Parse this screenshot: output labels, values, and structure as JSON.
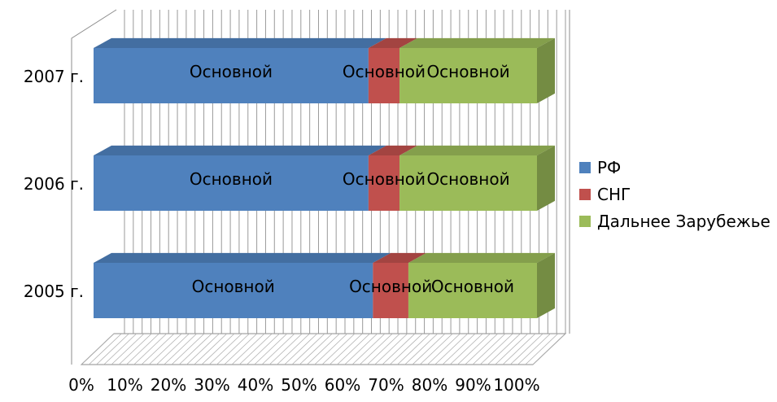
{
  "chart_data": {
    "type": "bar",
    "orientation": "horizontal",
    "stacked": "percent",
    "three_d": true,
    "categories": [
      "2005 г.",
      "2006 г.",
      "2007 г."
    ],
    "series": [
      {
        "name": "РФ",
        "color": "#4F81BD",
        "values": [
          63,
          62,
          62
        ],
        "labels": [
          "Основной",
          "Основной",
          "Основной"
        ]
      },
      {
        "name": "СНГ",
        "color": "#C0504D",
        "values": [
          8,
          7,
          7
        ],
        "labels": [
          "Основной",
          "Основной",
          "Основной"
        ]
      },
      {
        "name": "Дальнее Зарубежье",
        "color": "#9BBB59",
        "values": [
          29,
          31,
          31
        ],
        "labels": [
          "Основной",
          "Основной",
          "Основной"
        ]
      }
    ],
    "x_ticks": [
      "0%",
      "10%",
      "20%",
      "30%",
      "40%",
      "50%",
      "60%",
      "70%",
      "80%",
      "90%",
      "100%"
    ],
    "xlim": [
      0,
      100
    ],
    "grid": true,
    "legend": "right",
    "title": "",
    "xlabel": "",
    "ylabel": ""
  }
}
